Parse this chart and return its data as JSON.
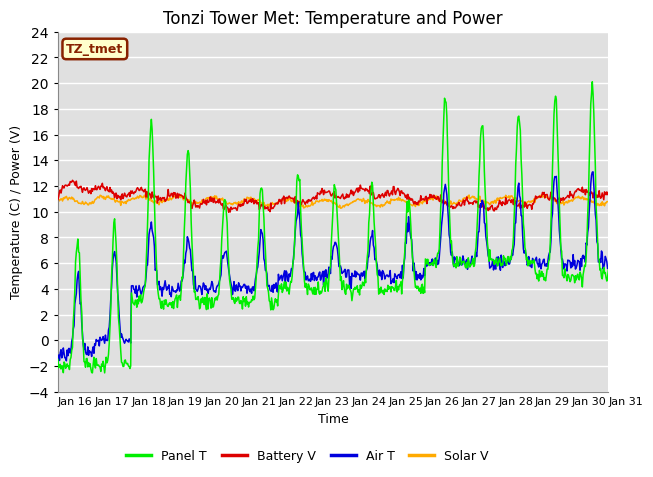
{
  "title": "Tonzi Tower Met: Temperature and Power",
  "xlabel": "Time",
  "ylabel": "Temperature (C) / Power (V)",
  "ylim": [
    -4,
    24
  ],
  "yticks": [
    -4,
    -2,
    0,
    2,
    4,
    6,
    8,
    10,
    12,
    14,
    16,
    18,
    20,
    22,
    24
  ],
  "x_tick_labels": [
    "Jan 16",
    "Jan 17",
    "Jan 18",
    "Jan 19",
    "Jan 20",
    "Jan 21",
    "Jan 22",
    "Jan 23",
    "Jan 24",
    "Jan 25",
    "Jan 26",
    "Jan 27",
    "Jan 28",
    "Jan 29",
    "Jan 30",
    "Jan 31"
  ],
  "label_box_text": "TZ_tmet",
  "label_box_color": "#ffffcc",
  "label_box_edge_color": "#882200",
  "legend_labels": [
    "Panel T",
    "Battery V",
    "Air T",
    "Solar V"
  ],
  "line_colors": [
    "#00ee00",
    "#dd0000",
    "#0000dd",
    "#ffaa00"
  ],
  "background_color": "#e0e0e0",
  "grid_color": "#ffffff",
  "title_fontsize": 12,
  "axis_fontsize": 9,
  "tick_fontsize": 8
}
